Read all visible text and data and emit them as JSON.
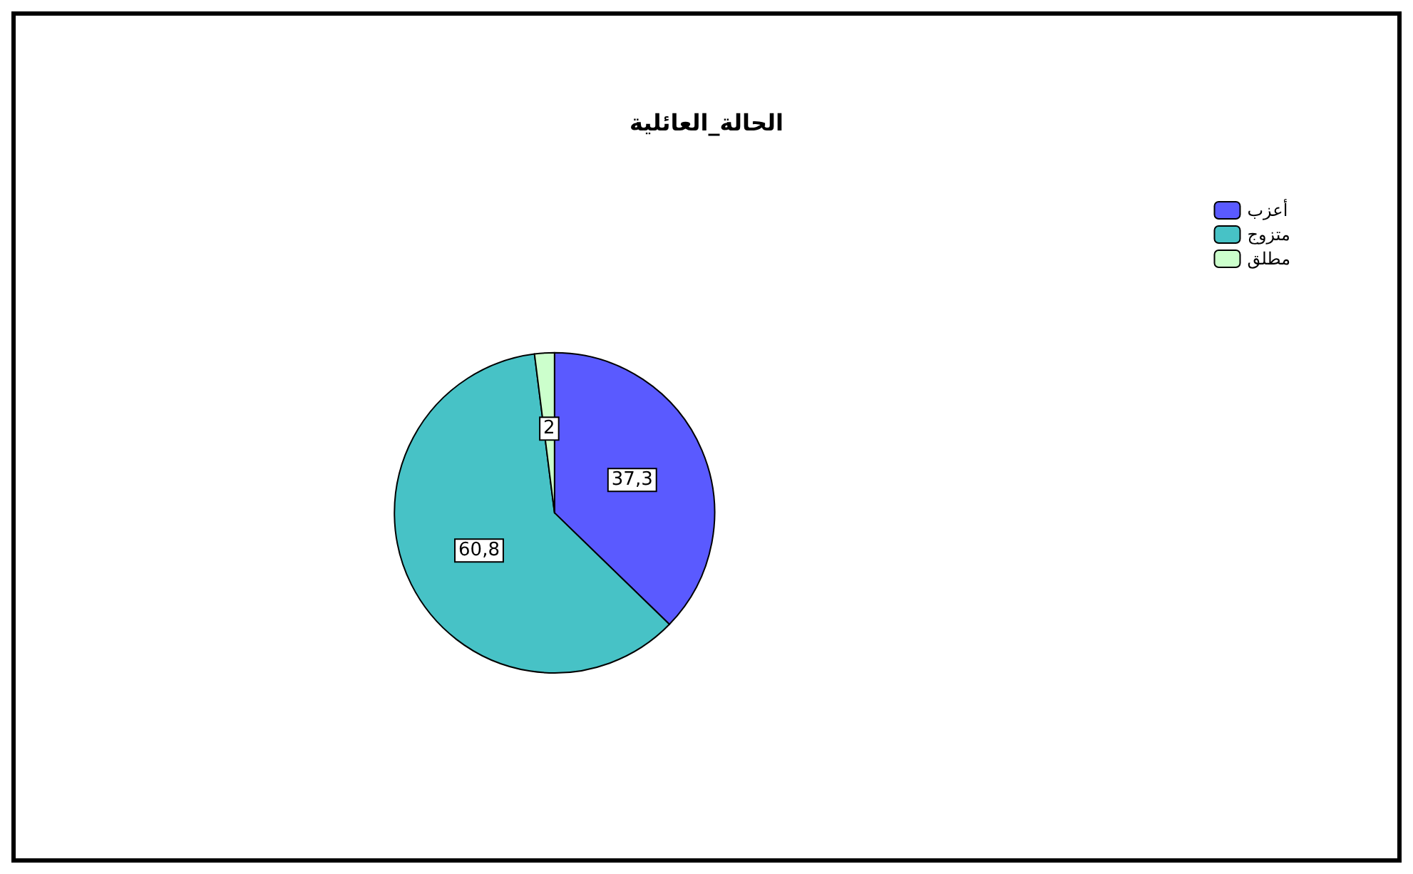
{
  "chart_data": {
    "type": "pie",
    "title": "الحالة_العائلية",
    "categories": [
      "أعزب",
      "متزوج",
      "مطلق"
    ],
    "values": [
      37.3,
      60.8,
      2
    ],
    "value_labels": [
      "37,3",
      "60,8",
      "2"
    ],
    "colors": [
      "#5a5aff",
      "#47c2c6",
      "#ccffcc"
    ],
    "legend": "top right"
  }
}
